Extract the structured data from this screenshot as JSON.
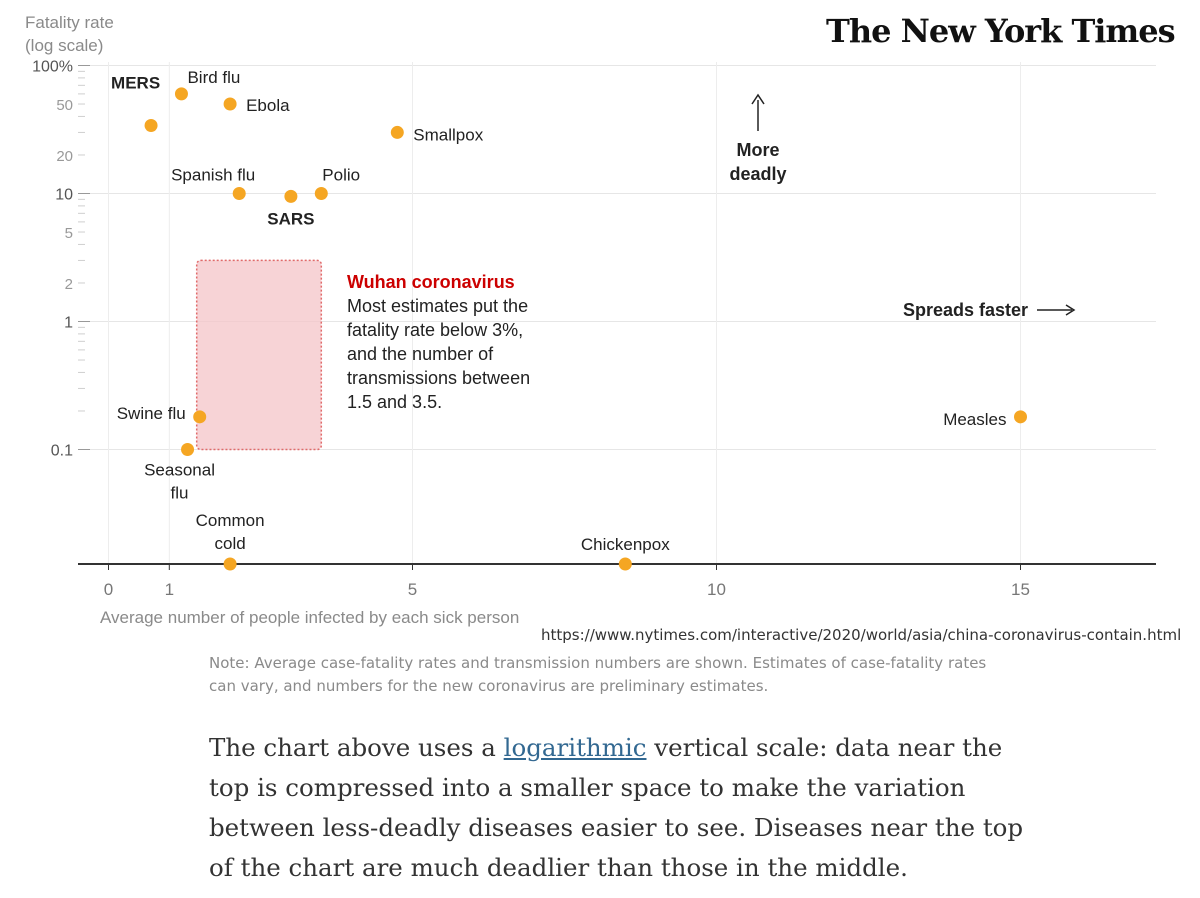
{
  "logo_text": "The New York Times",
  "source_url": "https://www.nytimes.com/interactive/2020/world/asia/china-coronavirus-contain.html",
  "note": "Note: Average case-fatality rates and transmission numbers are shown. Estimates of case-fatality rates can vary, and numbers for the new coronavirus are preliminary estimates.",
  "paragraph": {
    "before_link": "The chart above uses a ",
    "link_text": "logarithmic",
    "after_link": " vertical scale: data near the top is compressed into a smaller space to make the variation between less-deadly diseases easier to see. Diseases near the top of the chart are much deadlier than those in the middle."
  },
  "colors": {
    "point": "#f5a623",
    "highlight_red": "#cc0000",
    "box_fill": "#f4c4c8",
    "box_border": "#e06a6a"
  },
  "chart_data": {
    "type": "scatter",
    "y_scale": "log",
    "ylabel_lines": [
      "Fatality rate",
      "(log scale)"
    ],
    "xlabel": "Average number of people infected by each sick person",
    "xlim": [
      -0.5,
      17
    ],
    "ylim": [
      0.01,
      100
    ],
    "x_ticks": [
      "0",
      "1",
      "5",
      "10",
      "15"
    ],
    "y_ticks": [
      "100%",
      "50",
      "20",
      "10",
      "5",
      "2",
      "1",
      "0.1"
    ],
    "grid": true,
    "points": [
      {
        "name": "MERS",
        "x": 0.7,
        "y": 34,
        "bold": true
      },
      {
        "name": "Bird flu",
        "x": 1.2,
        "y": 60,
        "bold": false
      },
      {
        "name": "Ebola",
        "x": 2.0,
        "y": 50,
        "bold": false
      },
      {
        "name": "Smallpox",
        "x": 4.75,
        "y": 30,
        "bold": false
      },
      {
        "name": "Spanish flu",
        "x": 2.15,
        "y": 10,
        "bold": false
      },
      {
        "name": "SARS",
        "x": 3.0,
        "y": 9.5,
        "bold": true
      },
      {
        "name": "Polio",
        "x": 3.5,
        "y": 10,
        "bold": false
      },
      {
        "name": "Swine flu",
        "x": 1.5,
        "y": 0.18,
        "bold": false
      },
      {
        "name": "Seasonal flu",
        "x": 1.3,
        "y": 0.1,
        "bold": false
      },
      {
        "name": "Measles",
        "x": 15,
        "y": 0.18,
        "bold": false
      },
      {
        "name": "Common cold",
        "x": 2.0,
        "y": null,
        "bold": false
      },
      {
        "name": "Chickenpox",
        "x": 8.5,
        "y": null,
        "bold": false
      }
    ],
    "highlight_region": {
      "x": [
        1.5,
        3.5
      ],
      "y": [
        0.1,
        3
      ],
      "title": "Wuhan coronavirus",
      "lines": [
        "Most estimates put the",
        "fatality rate below 3%,",
        "and the number of",
        "transmissions between",
        "1.5 and 3.5."
      ]
    },
    "annotations": {
      "more_deadly": [
        "More",
        "deadly"
      ],
      "spreads_faster": "Spreads faster"
    }
  }
}
